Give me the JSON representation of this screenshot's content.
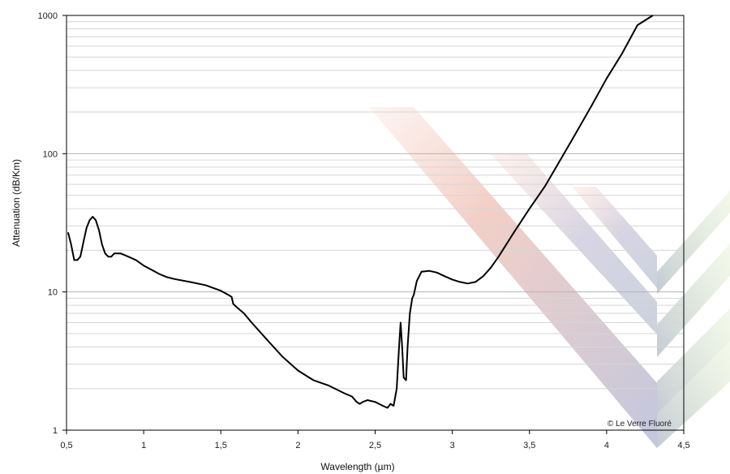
{
  "chart_data": {
    "type": "line",
    "xlabel": "Wavelength (µm)",
    "ylabel": "Attenuation (dB/Km)",
    "credit": "© Le Verre Fluoré",
    "xlim": [
      0.5,
      4.5
    ],
    "ylim": [
      1,
      1000
    ],
    "y_scale": "log",
    "grid": true,
    "x_ticks": [
      0.5,
      1,
      1.5,
      2,
      2.5,
      3,
      3.5,
      4,
      4.5
    ],
    "x_tick_labels": [
      "0,5",
      "1",
      "1,5",
      "2",
      "2,5",
      "3",
      "3,5",
      "4",
      "4,5"
    ],
    "y_ticks": [
      1,
      10,
      100,
      1000
    ],
    "y_tick_labels": [
      "1",
      "10",
      "100",
      "1000"
    ],
    "line_color": "#000000",
    "series": [
      {
        "x": [
          0.51,
          0.53,
          0.55,
          0.57,
          0.59,
          0.61,
          0.63,
          0.65,
          0.67,
          0.69,
          0.71,
          0.73,
          0.75,
          0.77,
          0.79,
          0.81,
          0.85,
          0.9,
          0.95,
          1.0,
          1.05,
          1.1,
          1.15,
          1.2,
          1.3,
          1.4,
          1.5,
          1.55,
          1.57,
          1.58,
          1.6,
          1.65,
          1.7,
          1.8,
          1.9,
          2.0,
          2.1,
          2.2,
          2.3,
          2.35,
          2.38,
          2.4,
          2.42,
          2.45,
          2.5,
          2.55,
          2.58,
          2.6,
          2.62,
          2.64,
          2.655,
          2.665,
          2.675,
          2.685,
          2.7,
          2.71,
          2.725,
          2.74,
          2.75,
          2.77,
          2.8,
          2.85,
          2.9,
          2.95,
          3.0,
          3.05,
          3.1,
          3.15,
          3.2,
          3.25,
          3.3,
          3.4,
          3.5,
          3.6,
          3.7,
          3.8,
          3.9,
          4.0,
          4.1,
          4.2,
          4.3
        ],
        "y": [
          27,
          22,
          17,
          17,
          18,
          23,
          29,
          33,
          35,
          33,
          28,
          22,
          19,
          18,
          18,
          19,
          19,
          18,
          17,
          15.5,
          14.5,
          13.5,
          12.8,
          12.4,
          11.8,
          11.2,
          10.2,
          9.5,
          9.2,
          8.2,
          7.8,
          7.0,
          6.0,
          4.5,
          3.4,
          2.7,
          2.3,
          2.1,
          1.85,
          1.75,
          1.6,
          1.55,
          1.6,
          1.65,
          1.6,
          1.5,
          1.45,
          1.55,
          1.5,
          2.0,
          4.0,
          6.0,
          4.0,
          2.4,
          2.3,
          4.0,
          7.0,
          9.0,
          9.5,
          12,
          14,
          14.2,
          13.8,
          13,
          12.3,
          11.8,
          11.5,
          11.8,
          13,
          15,
          18,
          27,
          40,
          58,
          90,
          140,
          220,
          350,
          530,
          850,
          1000
        ]
      }
    ]
  }
}
